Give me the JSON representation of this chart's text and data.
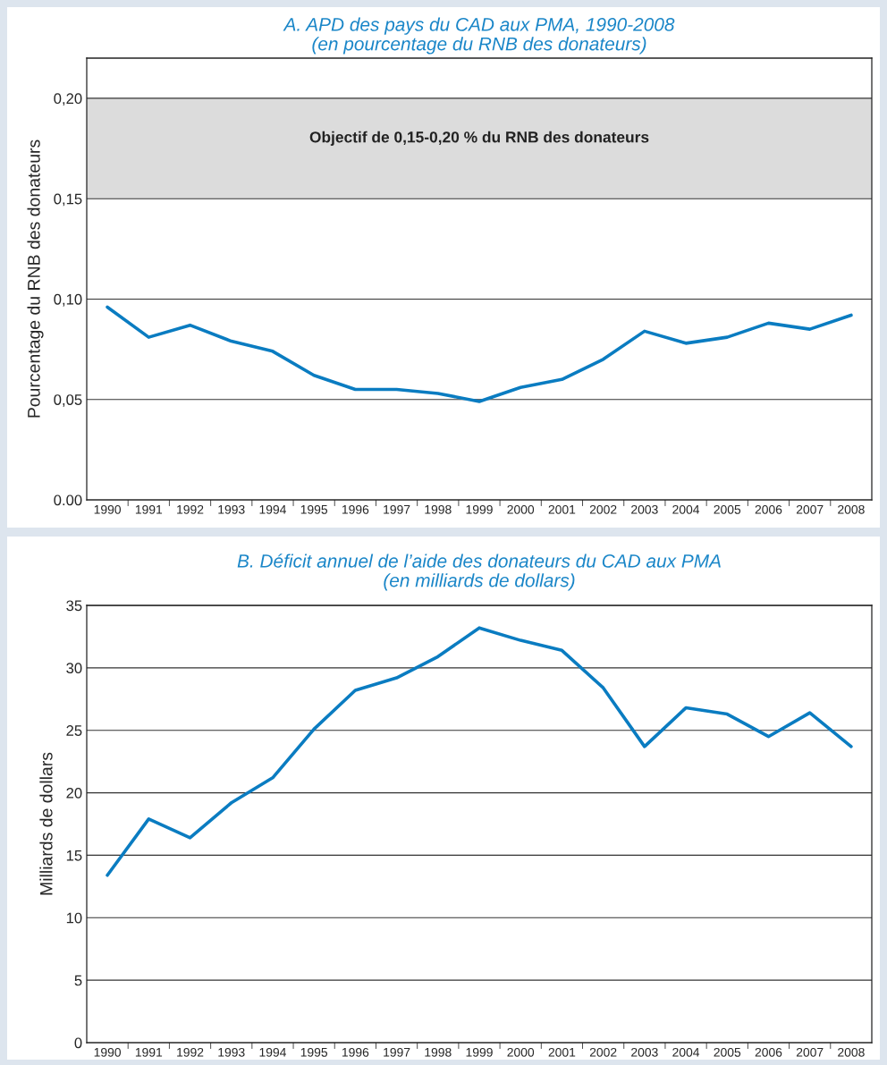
{
  "chart_data": [
    {
      "type": "line",
      "title": "A. APD des pays du CAD aux PMA, 1990-2008\n(en pourcentage du RNB des donateurs)",
      "ylabel": "Pourcentage du RNB des donateurs",
      "categories": [
        "1990",
        "1991",
        "1992",
        "1993",
        "1994",
        "1995",
        "1996",
        "1997",
        "1998",
        "1999",
        "2000",
        "2001",
        "2002",
        "2003",
        "2004",
        "2005",
        "2006",
        "2007",
        "2008"
      ],
      "series": [
        {
          "color": "#0a7cc1",
          "values": [
            0.096,
            0.081,
            0.087,
            0.079,
            0.074,
            0.062,
            0.055,
            0.055,
            0.053,
            0.049,
            0.056,
            0.06,
            0.07,
            0.084,
            0.078,
            0.081,
            0.088,
            0.085,
            0.092
          ]
        }
      ],
      "ylim": [
        0,
        0.22
      ],
      "yticks": [
        {
          "value": 0,
          "label": "0.00"
        },
        {
          "value": 0.05,
          "label": "0,05"
        },
        {
          "value": 0.1,
          "label": "0,10"
        },
        {
          "value": 0.15,
          "label": "0,15"
        },
        {
          "value": 0.2,
          "label": "0,20"
        }
      ],
      "bands": [
        {
          "axis": "y",
          "from": 0.15,
          "to": 0.2,
          "label": "Objectif de 0,15-0,20 % du RNB des donateurs",
          "color": "#dcdcdc"
        }
      ],
      "grid": "y",
      "line_style": "solid"
    },
    {
      "type": "line",
      "title": "B. Déficit annuel de l’aide des donateurs du CAD aux PMA\n(en milliards de dollars)",
      "ylabel": "Milliards de dollars",
      "categories": [
        "1990",
        "1991",
        "1992",
        "1993",
        "1994",
        "1995",
        "1996",
        "1997",
        "1998",
        "1999",
        "2000",
        "2001",
        "2002",
        "2003",
        "2004",
        "2005",
        "2006",
        "2007",
        "2008"
      ],
      "series": [
        {
          "color": "#0a7cc1",
          "values": [
            13.4,
            17.9,
            16.4,
            19.2,
            21.2,
            25.1,
            28.2,
            29.2,
            30.9,
            33.2,
            32.2,
            31.4,
            28.4,
            23.7,
            26.8,
            26.3,
            24.5,
            26.4,
            23.7
          ]
        }
      ],
      "ylim": [
        0,
        35
      ],
      "yticks": [
        0,
        5,
        10,
        15,
        20,
        25,
        30,
        35
      ],
      "grid": "y",
      "line_style": "solid"
    }
  ]
}
